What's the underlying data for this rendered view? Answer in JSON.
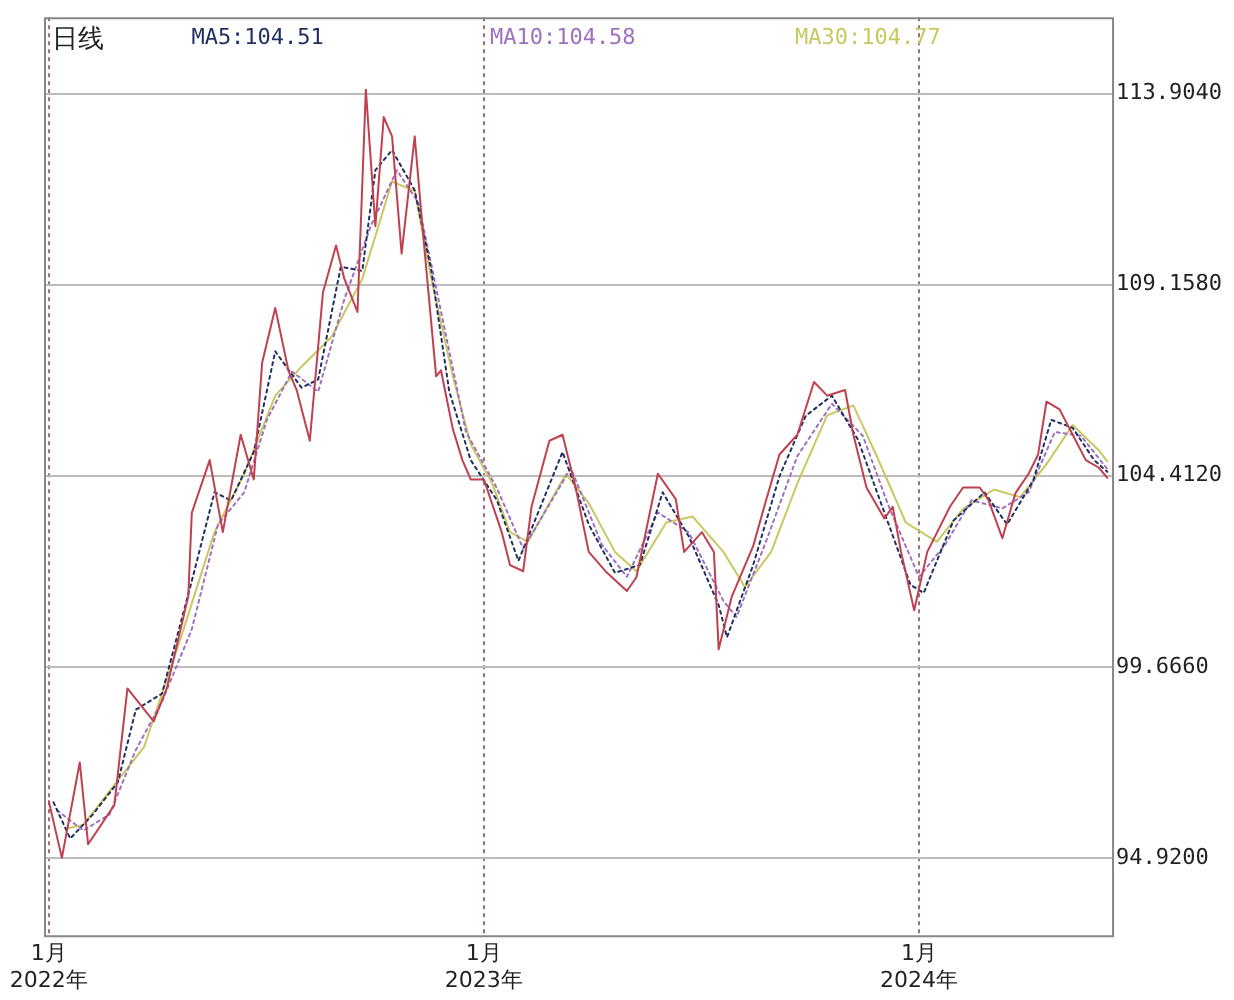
{
  "chart_data": {
    "type": "line",
    "title": "日线",
    "legend": "top",
    "grid": true,
    "marker": "none",
    "xlim": [
      "2021-12-28",
      "2024-06-11"
    ],
    "xticks": [
      {
        "value": "2022-01-01",
        "label": "1月\n2022年"
      },
      {
        "value": "2023-01-01",
        "label": "1月\n2023年"
      },
      {
        "value": "2024-01-01",
        "label": "1月\n2024年"
      }
    ],
    "ylim": [
      93.0,
      115.8
    ],
    "yticks": [
      {
        "value": 94.92,
        "label": "94.9200"
      },
      {
        "value": 99.666,
        "label": "99.6660"
      },
      {
        "value": 104.412,
        "label": "104.4120"
      },
      {
        "value": 109.158,
        "label": "109.1580"
      },
      {
        "value": 113.904,
        "label": "113.9040"
      }
    ],
    "series": [
      {
        "color": "#c04050",
        "line_style": "solid",
        "x": [
          "2022-01-01",
          "2022-01-12",
          "2022-01-27",
          "2022-02-03",
          "2022-02-25",
          "2022-03-08",
          "2022-03-30",
          "2022-04-10",
          "2022-04-28",
          "2022-05-01",
          "2022-05-16",
          "2022-05-27",
          "2022-06-11",
          "2022-06-22",
          "2022-06-29",
          "2022-07-10",
          "2022-07-21",
          "2022-07-28",
          "2022-08-08",
          "2022-08-19",
          "2022-08-30",
          "2022-09-06",
          "2022-09-17",
          "2022-09-24",
          "2022-10-02",
          "2022-10-09",
          "2022-10-16",
          "2022-10-24",
          "2022-11-04",
          "2022-11-11",
          "2022-11-22",
          "2022-11-26",
          "2022-12-06",
          "2022-12-14",
          "2022-12-21",
          "2023-01-01",
          "2023-01-16",
          "2023-01-23",
          "2023-02-03",
          "2023-02-10",
          "2023-02-25",
          "2023-03-08",
          "2023-03-19",
          "2023-03-30",
          "2023-04-13",
          "2023-05-01",
          "2023-05-09",
          "2023-05-27",
          "2023-06-11",
          "2023-06-18",
          "2023-07-03",
          "2023-07-13",
          "2023-07-17",
          "2023-07-28",
          "2023-08-15",
          "2023-08-26",
          "2023-09-06",
          "2023-09-21",
          "2023-10-05",
          "2023-10-16",
          "2023-10-31",
          "2023-11-07",
          "2023-11-18",
          "2023-12-03",
          "2023-12-10",
          "2023-12-17",
          "2023-12-28",
          "2024-01-08",
          "2024-01-27",
          "2024-02-07",
          "2024-02-21",
          "2024-02-28",
          "2024-03-11",
          "2024-03-22",
          "2024-04-02",
          "2024-04-10",
          "2024-04-17",
          "2024-04-28",
          "2024-05-09",
          "2024-05-20",
          "2024-05-31",
          "2024-06-07"
        ],
        "values": [
          96.33,
          94.92,
          97.29,
          95.26,
          96.23,
          99.13,
          98.31,
          99.13,
          101.41,
          103.49,
          104.8,
          103.01,
          105.43,
          104.32,
          107.22,
          108.58,
          107.03,
          106.54,
          105.28,
          108.96,
          110.13,
          109.3,
          108.48,
          114.0,
          110.61,
          113.32,
          112.84,
          109.93,
          112.84,
          110.42,
          106.88,
          107.03,
          105.57,
          104.8,
          104.32,
          104.32,
          103.01,
          102.19,
          102.04,
          103.64,
          105.28,
          105.43,
          104.12,
          102.52,
          102.04,
          101.55,
          101.89,
          104.46,
          103.83,
          102.52,
          103.01,
          102.52,
          100.1,
          101.41,
          102.67,
          103.83,
          104.94,
          105.43,
          106.74,
          106.4,
          106.54,
          105.43,
          104.12,
          103.35,
          103.64,
          102.52,
          101.07,
          102.52,
          103.64,
          104.12,
          104.12,
          103.83,
          102.86,
          103.98,
          104.46,
          104.94,
          106.25,
          106.06,
          105.43,
          104.8,
          104.61,
          104.36
        ]
      },
      {
        "name": "MA5:104.51",
        "color": "#203060",
        "line_style": "dotted",
        "x": [
          "2022-01-05",
          "2022-01-19",
          "2022-02-07",
          "2022-02-28",
          "2022-03-15",
          "2022-04-06",
          "2022-05-01",
          "2022-05-20",
          "2022-06-03",
          "2022-06-22",
          "2022-07-10",
          "2022-08-01",
          "2022-08-15",
          "2022-09-03",
          "2022-09-21",
          "2022-10-02",
          "2022-10-16",
          "2022-11-04",
          "2022-11-18",
          "2022-12-03",
          "2022-12-21",
          "2023-01-12",
          "2023-01-30",
          "2023-02-17",
          "2023-03-08",
          "2023-03-30",
          "2023-04-21",
          "2023-05-12",
          "2023-05-31",
          "2023-06-22",
          "2023-07-17",
          "2023-07-24",
          "2023-08-15",
          "2023-09-06",
          "2023-09-28",
          "2023-10-20",
          "2023-11-11",
          "2023-12-03",
          "2023-12-25",
          "2024-01-05",
          "2024-01-30",
          "2024-02-25",
          "2024-03-15",
          "2024-04-06",
          "2024-04-21",
          "2024-05-09",
          "2024-05-27",
          "2024-06-07"
        ],
        "values": [
          96.3,
          95.4,
          96.0,
          96.8,
          98.6,
          99.0,
          101.8,
          104.0,
          103.8,
          105.0,
          107.5,
          106.6,
          106.8,
          109.6,
          109.5,
          112.0,
          112.5,
          111.5,
          109.5,
          106.5,
          104.8,
          103.8,
          102.3,
          103.6,
          105.0,
          103.2,
          102.0,
          102.2,
          104.0,
          102.9,
          101.2,
          100.4,
          102.2,
          104.4,
          105.9,
          106.4,
          105.3,
          103.5,
          101.7,
          101.5,
          103.3,
          104.0,
          103.2,
          104.3,
          105.8,
          105.6,
          104.8,
          104.51
        ]
      },
      {
        "name": "MA10:104.58",
        "color": "#a070c0",
        "line_style": "dotted",
        "x": [
          "2022-01-08",
          "2022-01-30",
          "2022-02-21",
          "2022-03-15",
          "2022-04-06",
          "2022-05-01",
          "2022-05-23",
          "2022-06-14",
          "2022-07-03",
          "2022-07-24",
          "2022-08-15",
          "2022-09-06",
          "2022-09-28",
          "2022-10-20",
          "2022-11-07",
          "2022-11-26",
          "2022-12-17",
          "2023-01-12",
          "2023-02-03",
          "2023-02-25",
          "2023-03-15",
          "2023-04-10",
          "2023-05-01",
          "2023-05-27",
          "2023-06-22",
          "2023-07-21",
          "2023-08-01",
          "2023-08-26",
          "2023-09-21",
          "2023-10-20",
          "2023-11-15",
          "2023-12-06",
          "2024-01-01",
          "2024-01-23",
          "2024-02-14",
          "2024-03-11",
          "2024-04-02",
          "2024-04-24",
          "2024-05-16",
          "2024-06-07"
        ],
        "values": [
          96.1,
          95.6,
          96.0,
          97.6,
          98.8,
          100.6,
          103.2,
          104.0,
          105.8,
          107.0,
          106.5,
          108.8,
          110.6,
          112.0,
          111.2,
          108.5,
          105.5,
          104.1,
          102.6,
          103.7,
          104.6,
          102.7,
          101.9,
          103.5,
          103.0,
          101.3,
          100.9,
          102.8,
          104.9,
          106.2,
          105.4,
          103.7,
          101.9,
          102.7,
          103.8,
          103.6,
          104.0,
          105.5,
          105.4,
          104.58
        ]
      },
      {
        "name": "MA30:104.77",
        "color": "#c8c860",
        "line_style": "solid",
        "x": [
          "2022-01-16",
          "2022-01-30",
          "2022-03-22",
          "2022-04-24",
          "2022-05-20",
          "2022-06-14",
          "2022-07-10",
          "2022-08-01",
          "2022-08-26",
          "2022-09-21",
          "2022-10-16",
          "2022-11-04",
          "2022-11-18",
          "2022-12-06",
          "2022-12-21",
          "2023-01-08",
          "2023-01-23",
          "2023-02-07",
          "2023-02-25",
          "2023-03-11",
          "2023-03-30",
          "2023-04-21",
          "2023-05-09",
          "2023-06-03",
          "2023-06-25",
          "2023-07-21",
          "2023-08-08",
          "2023-08-30",
          "2023-09-21",
          "2023-10-16",
          "2023-11-07",
          "2023-11-26",
          "2023-12-21",
          "2024-01-16",
          "2024-02-07",
          "2024-03-04",
          "2024-03-26",
          "2024-04-17",
          "2024-05-09",
          "2024-05-31",
          "2024-06-07"
        ],
        "values": [
          95.65,
          95.74,
          97.68,
          100.59,
          103.01,
          104.46,
          106.4,
          107.12,
          107.85,
          109.3,
          111.72,
          111.48,
          109.3,
          106.88,
          105.19,
          104.22,
          103.01,
          102.77,
          103.73,
          104.46,
          103.73,
          102.52,
          102.04,
          103.25,
          103.4,
          102.52,
          101.65,
          102.52,
          104.22,
          105.91,
          106.16,
          104.94,
          103.25,
          102.77,
          103.59,
          104.07,
          103.88,
          104.7,
          105.67,
          105.04,
          104.77
        ]
      }
    ]
  }
}
